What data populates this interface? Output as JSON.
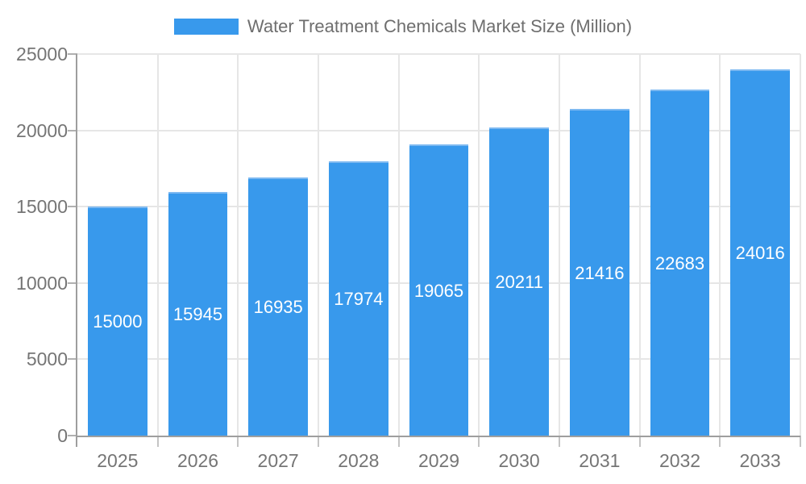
{
  "legend": {
    "swatch": "series-color-swatch"
  },
  "chart_data": {
    "type": "bar",
    "title": "Water Treatment Chemicals Market Size (Million)",
    "categories": [
      "2025",
      "2026",
      "2027",
      "2028",
      "2029",
      "2030",
      "2031",
      "2032",
      "2033"
    ],
    "values": [
      15000,
      15945,
      16935,
      17974,
      19065,
      20211,
      21416,
      22683,
      24016
    ],
    "series_name": "Water Treatment Chemicals Market Size (Million)",
    "xlabel": "",
    "ylabel": "",
    "ylim": [
      0,
      25000
    ],
    "yticks": [
      0,
      5000,
      10000,
      15000,
      20000,
      25000
    ],
    "grid": true,
    "bar_value_labels": true,
    "legend_position": "top-center"
  },
  "colors": {
    "bar": "#3899ec",
    "bar_top_edge": "#7db9f1",
    "grid": "#e6e6e6",
    "axis": "#9e9e9e",
    "x_tick": "#c4c4c4",
    "y_tick": "#b0b0b0",
    "axis_label_text": "#757575",
    "value_label_text": "#ffffff",
    "title_text": "#6e6e6e",
    "background": "#ffffff"
  }
}
